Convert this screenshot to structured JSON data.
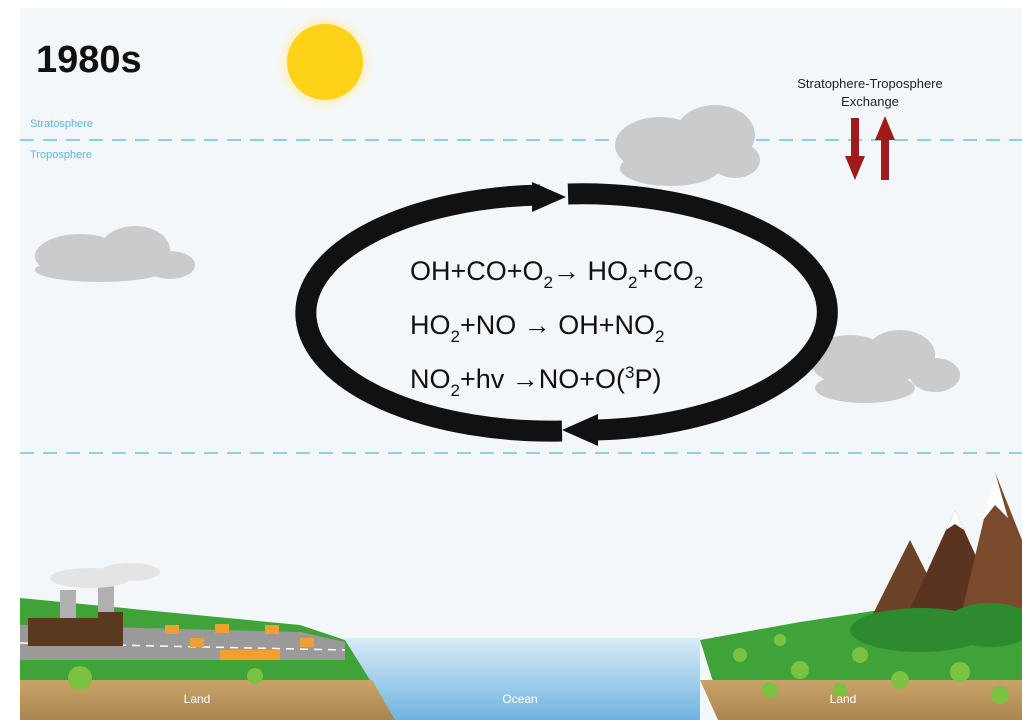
{
  "header": {
    "title": "1980s"
  },
  "layers": {
    "upper": "Stratosphere",
    "lower": "Troposphere"
  },
  "exchange_label": [
    "Stratophere-Troposphere",
    "Exchange"
  ],
  "reactions": [
    [
      {
        "text": "OH+CO+O"
      },
      {
        "sub": "2"
      },
      {
        "text": "→ HO"
      },
      {
        "sub": "2"
      },
      {
        "text": "+CO"
      },
      {
        "sub": "2"
      }
    ],
    [
      {
        "text": "HO"
      },
      {
        "sub": "2"
      },
      {
        "text": "+NO → OH+NO"
      },
      {
        "sub": "2"
      }
    ],
    [
      {
        "text": "NO"
      },
      {
        "sub": "2"
      },
      {
        "text": "+hv →NO+O("
      },
      {
        "sup": "3"
      },
      {
        "text": "P)"
      }
    ]
  ],
  "ground": {
    "left": "Land",
    "middle": "Ocean",
    "right": "Land"
  }
}
